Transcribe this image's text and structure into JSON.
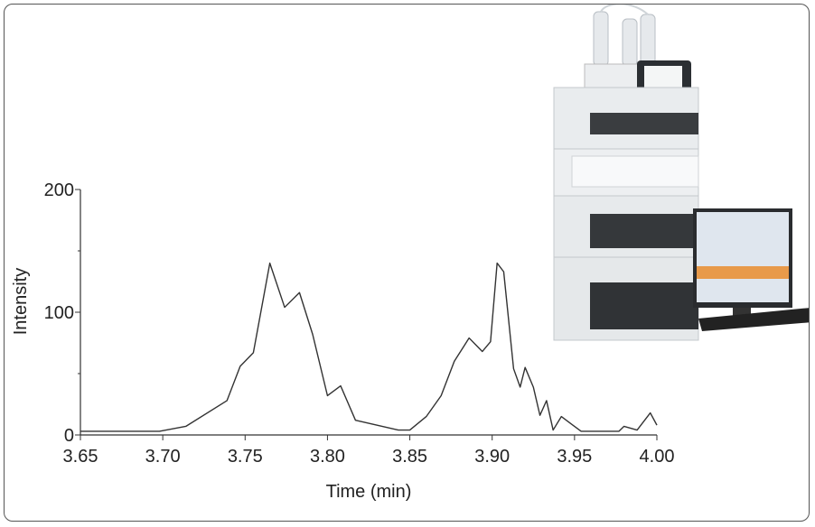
{
  "chart_data": {
    "type": "line",
    "x_label": "Time (min)",
    "y_label": "Intensity",
    "x": [
      3.65,
      3.698,
      3.714,
      3.739,
      3.747,
      3.755,
      3.765,
      3.774,
      3.783,
      3.791,
      3.8,
      3.808,
      3.817,
      3.843,
      3.85,
      3.86,
      3.869,
      3.877,
      3.886,
      3.894,
      3.899,
      3.903,
      3.907,
      3.913,
      3.917,
      3.92,
      3.925,
      3.929,
      3.933,
      3.937,
      3.942,
      3.948,
      3.954,
      3.977,
      3.98,
      3.988,
      3.996,
      4.0
    ],
    "series": [
      {
        "color": "#333333",
        "values": [
          3,
          3,
          7,
          28,
          56,
          67,
          140,
          104,
          116,
          82,
          32,
          40,
          12,
          4,
          4,
          15,
          32,
          60,
          79,
          68,
          76,
          140,
          133,
          54,
          39,
          55,
          39,
          16,
          28,
          4,
          15,
          9,
          3,
          3,
          7,
          4,
          18,
          8
        ]
      }
    ],
    "xlim": [
      3.65,
      4.0
    ],
    "xticks": [
      3.65,
      {
        "value": 3.7,
        "label": "3.70"
      },
      3.75,
      {
        "value": 3.8,
        "label": "3.80"
      },
      3.85,
      {
        "value": 3.9,
        "label": "3.90"
      },
      3.95,
      {
        "value": 4,
        "label": "4.00"
      }
    ],
    "ylim": [
      0,
      200
    ],
    "yticks": [
      0,
      100,
      200
    ],
    "yminorticks": [
      50,
      150
    ],
    "grid": false
  }
}
